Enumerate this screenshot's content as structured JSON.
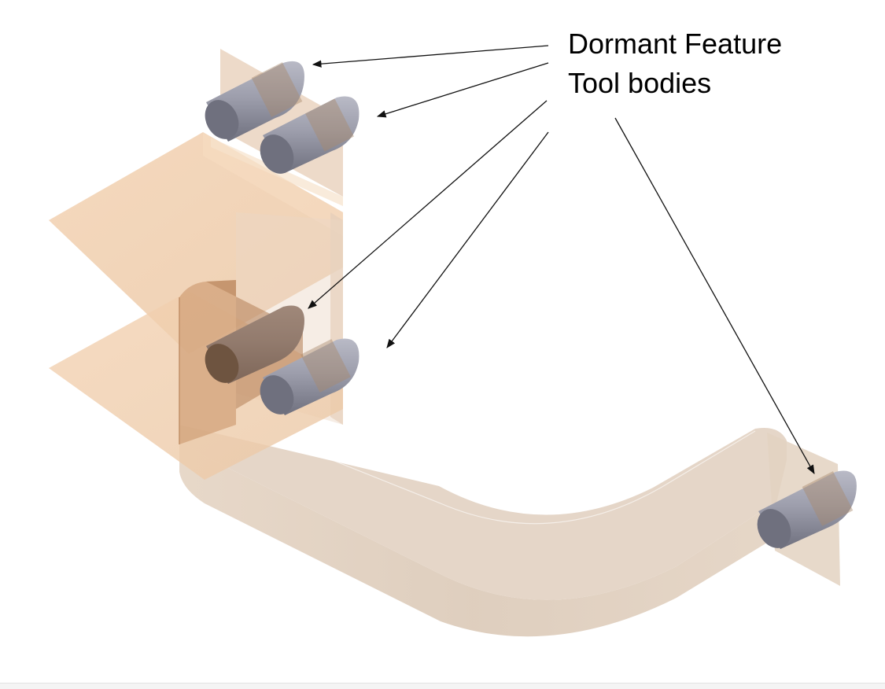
{
  "callout": {
    "line1": "Dormant Feature",
    "line2": "Tool bodies"
  },
  "colors": {
    "sheet": "#f0c9a4",
    "sheet_dark": "#c99769",
    "channel": "#dfcfbf",
    "tool_body": "#8e8f9e",
    "tool_end": "#6d6e7c",
    "arrow": "#111111"
  }
}
